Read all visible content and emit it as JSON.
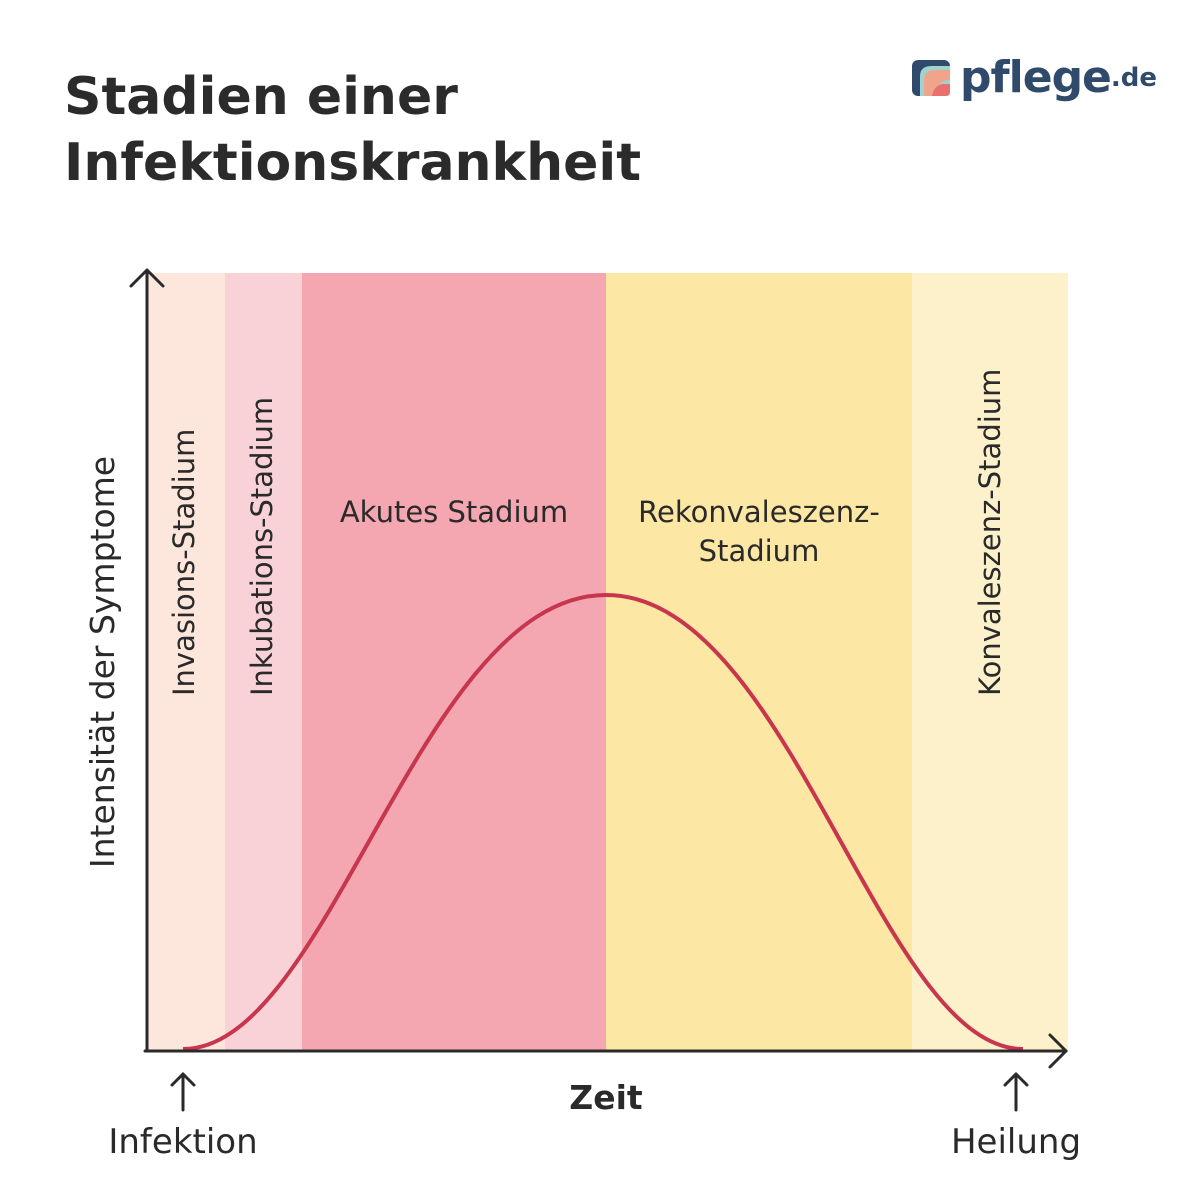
{
  "title": {
    "line1": "Stadien einer",
    "line2": "Infektionskrankheit"
  },
  "logo": {
    "name": "pflege",
    "tld": ".de"
  },
  "stages": [
    {
      "label": "Invasions-Stadium",
      "color": "#fde7dc"
    },
    {
      "label": "Inkubations-Stadium",
      "color": "#f9d2d8"
    },
    {
      "label": "Akutes Stadium",
      "color": "#f4a6b1"
    },
    {
      "label": "Rekonvaleszenz-",
      "label2": "Stadium",
      "color": "#fce7a4"
    },
    {
      "label": "Konvaleszenz-Stadium",
      "color": "#fdf1cb"
    }
  ],
  "axes": {
    "y_label": "Intensität der Symptome",
    "x_label": "Zeit"
  },
  "markers": {
    "start": "Infektion",
    "end": "Heilung"
  },
  "colors": {
    "curve": "#c8364e",
    "axis": "#2a2a2a"
  }
}
